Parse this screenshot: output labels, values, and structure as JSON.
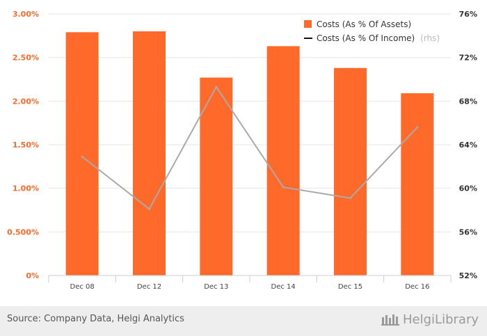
{
  "chart_data": {
    "type": "bar+line",
    "categories": [
      "Dec 08",
      "Dec 12",
      "Dec 13",
      "Dec 14",
      "Dec 15",
      "Dec 16"
    ],
    "series": [
      {
        "name": "Costs (As % Of Assets)",
        "axis": "left",
        "kind": "bar",
        "color": "#ff6a2a",
        "values": [
          2.79,
          2.8,
          2.27,
          2.63,
          2.38,
          2.09
        ]
      },
      {
        "name": "Costs (As % Of Income)",
        "name_suffix": "(rhs)",
        "axis": "right",
        "kind": "line",
        "color": "#aaaaaa",
        "values": [
          62.9,
          58.1,
          69.3,
          60.1,
          59.1,
          65.6
        ]
      }
    ],
    "left_axis": {
      "ticks": [
        "0%",
        "0.500%",
        "1.00%",
        "1.50%",
        "2.00%",
        "2.50%",
        "3.00%"
      ],
      "tick_values": [
        0,
        0.5,
        1.0,
        1.5,
        2.0,
        2.5,
        3.0
      ],
      "ylim": [
        0,
        3.0
      ],
      "color": "#ff6a2a"
    },
    "right_axis": {
      "ticks": [
        "52%",
        "56%",
        "60%",
        "64%",
        "68%",
        "72%",
        "76%"
      ],
      "tick_values": [
        52,
        56,
        60,
        64,
        68,
        72,
        76
      ],
      "ylim": [
        52,
        76
      ],
      "color": "#333333"
    },
    "legend_position": "top-right",
    "grid": true
  },
  "footer": {
    "source": "Source: Company Data, Helgi Analytics",
    "brand": "HelgiLibrary"
  }
}
